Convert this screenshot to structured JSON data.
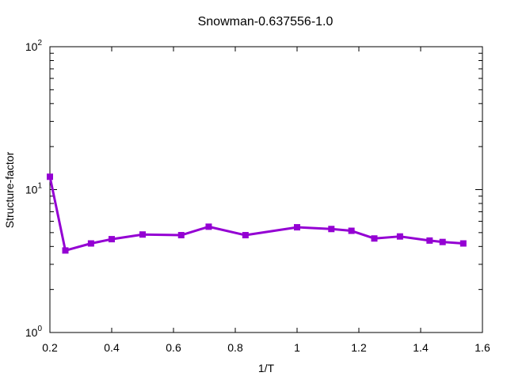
{
  "chart_data": {
    "type": "line",
    "title": "Snowman-0.637556-1.0",
    "xlabel": "1/T",
    "ylabel": "Structure-factor",
    "xlim": [
      0.2,
      1.6
    ],
    "ylim": [
      1,
      100
    ],
    "yscale": "log",
    "grid": false,
    "legend": "none",
    "x_ticks": [
      "0.2",
      "0.4",
      "0.6",
      "0.8",
      "1",
      "1.2",
      "1.4",
      "1.6"
    ],
    "y_ticks": [
      {
        "base": "10",
        "exp": "0"
      },
      {
        "base": "10",
        "exp": "1"
      },
      {
        "base": "10",
        "exp": "2"
      }
    ],
    "series": [
      {
        "color": "#9400d3",
        "x": [
          0.2,
          0.25,
          0.333,
          0.4,
          0.5,
          0.625,
          0.714,
          0.833,
          1.0,
          1.111,
          1.176,
          1.25,
          1.333,
          1.429,
          1.471,
          1.538
        ],
        "y": [
          12.3,
          3.75,
          4.2,
          4.5,
          4.85,
          4.8,
          5.5,
          4.8,
          5.45,
          5.3,
          5.15,
          4.55,
          4.7,
          4.4,
          4.3,
          4.2
        ]
      }
    ]
  }
}
